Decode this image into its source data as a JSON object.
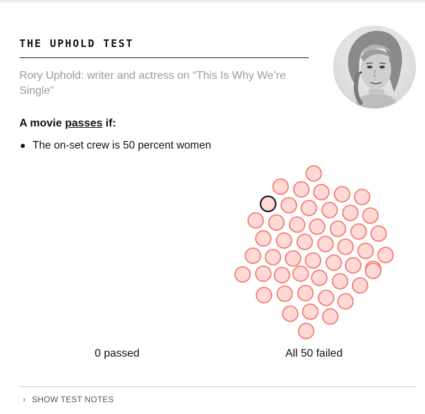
{
  "test": {
    "title": "THE UPHOLD TEST",
    "author_line": "Rory Uphold: writer and actress on “This Is Why We’re Single”",
    "rule_prefix": "A movie ",
    "rule_keyword": "passes",
    "rule_suffix": " if:",
    "criteria": [
      "The on-set crew is 50 percent women"
    ]
  },
  "results": {
    "total": 50,
    "passed": 0,
    "failed": 50,
    "highlighted_index": 6,
    "passed_label": "0 passed",
    "failed_label": "All 50 failed",
    "colors": {
      "failed_fill": "#ffd9d6",
      "failed_stroke": "#f47b70",
      "highlight_stroke": "#1a1a1a"
    }
  },
  "footer": {
    "notes_chevron": "›",
    "notes_label": "SHOW TEST NOTES"
  }
}
